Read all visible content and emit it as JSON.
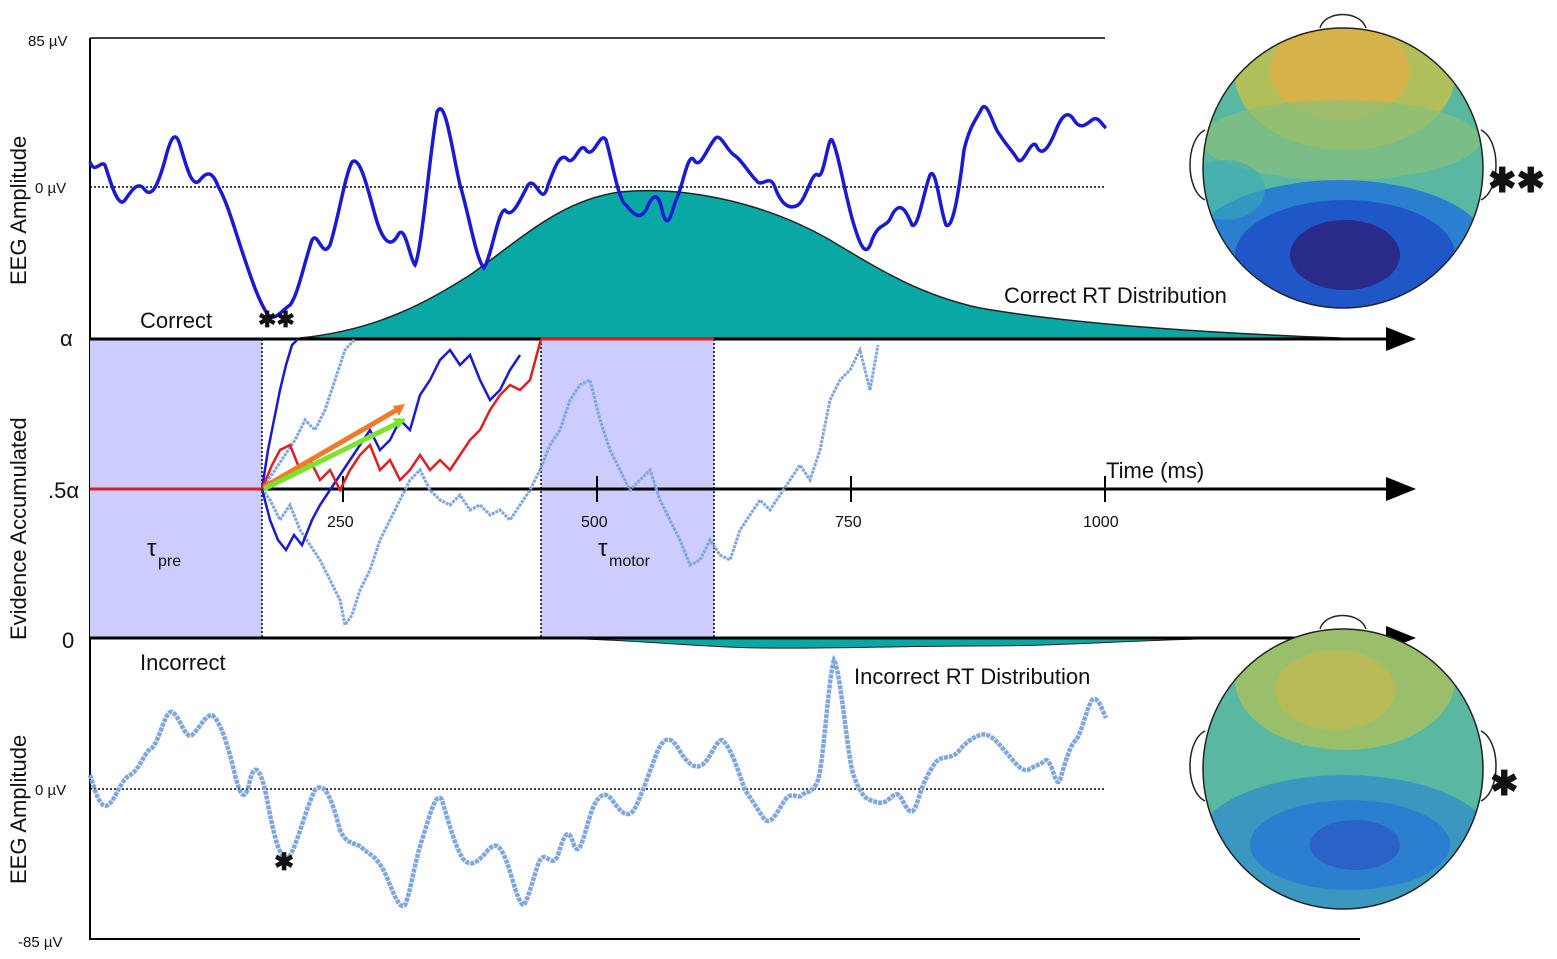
{
  "labels": {
    "top_max": "85 µV",
    "top_zero": "0 µV",
    "bottom_zero": "0 µV",
    "bottom_min": "-85 µV",
    "eeg_amp_top": "EEG Amplitude",
    "eeg_amp_bottom": "EEG Amplitude",
    "evidence": "Evidence Accumulated",
    "alpha": "α",
    "half_alpha": ".5α",
    "zero": "0",
    "correct": "Correct",
    "incorrect": "Incorrect",
    "correct_rt": "Correct RT Distribution",
    "incorrect_rt": "Incorrect RT Distribution",
    "time_axis": "Time (ms)",
    "tau_pre": "τ",
    "tau_pre_sub": "pre",
    "tau_motor": "τ",
    "tau_motor_sub": "motor",
    "marker_top": "✱✱",
    "marker_bottom": "✱"
  },
  "time_ticks": [
    "250",
    "500",
    "750",
    "1000"
  ],
  "colors": {
    "eeg_correct": "#1a1ad6",
    "eeg_incorrect": "#7fa6e0",
    "rt_fill": "#0aa8a4",
    "tau_box": "#ccccff",
    "path_red": "#e02020",
    "arrow_orange": "#f07a28",
    "arrow_green": "#7ce32c",
    "marker_orange": "#f26a2a",
    "marker_green": "#6ee82a"
  },
  "topomaps": [
    "frontal-positive posterior-negative (correct)",
    "frontal-positive posterior-negative (incorrect)"
  ]
}
